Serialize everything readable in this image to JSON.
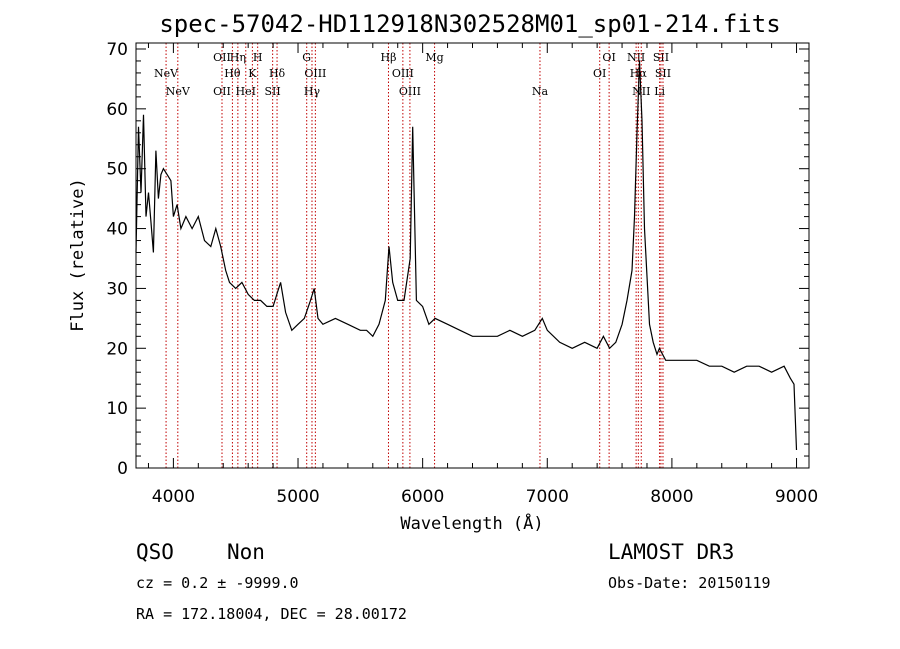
{
  "chart_data": {
    "type": "line",
    "title": "spec-57042-HD112918N302528M01_sp01-214.fits",
    "xlabel": "Wavelength (Å)",
    "ylabel": "Flux (relative)",
    "xlim": [
      3700,
      9100
    ],
    "ylim": [
      0,
      71
    ],
    "xticks": [
      4000,
      5000,
      6000,
      7000,
      8000,
      9000
    ],
    "yticks": [
      0,
      10,
      20,
      30,
      40,
      50,
      60,
      70
    ],
    "grid": false,
    "series": [
      {
        "color": "#000000",
        "x": [
          3700,
          3720,
          3740,
          3760,
          3780,
          3800,
          3820,
          3840,
          3860,
          3880,
          3900,
          3920,
          3950,
          3980,
          4000,
          4030,
          4060,
          4100,
          4150,
          4200,
          4250,
          4300,
          4340,
          4380,
          4420,
          4450,
          4500,
          4550,
          4600,
          4650,
          4700,
          4750,
          4800,
          4830,
          4860,
          4900,
          4950,
          5000,
          5050,
          5100,
          5130,
          5160,
          5200,
          5300,
          5400,
          5500,
          5550,
          5600,
          5650,
          5700,
          5730,
          5760,
          5800,
          5850,
          5900,
          5920,
          5950,
          6000,
          6050,
          6100,
          6200,
          6300,
          6400,
          6500,
          6600,
          6700,
          6800,
          6900,
          6960,
          7000,
          7100,
          7200,
          7300,
          7400,
          7450,
          7500,
          7550,
          7600,
          7640,
          7680,
          7700,
          7720,
          7740,
          7760,
          7780,
          7800,
          7820,
          7850,
          7880,
          7900,
          7950,
          8000,
          8100,
          8200,
          8300,
          8400,
          8500,
          8600,
          8700,
          8800,
          8900,
          8950,
          8980,
          9000
        ],
        "y": [
          36,
          57,
          46,
          59,
          42,
          46,
          41,
          36,
          53,
          45,
          49,
          50,
          49,
          48,
          42,
          44,
          40,
          42,
          40,
          42,
          38,
          37,
          40,
          37,
          33,
          31,
          30,
          31,
          29,
          28,
          28,
          27,
          27,
          29,
          31,
          26,
          23,
          24,
          25,
          28,
          30,
          25,
          24,
          25,
          24,
          23,
          23,
          22,
          24,
          28,
          37,
          31,
          28,
          28,
          35,
          57,
          28,
          27,
          24,
          25,
          24,
          23,
          22,
          22,
          22,
          23,
          22,
          23,
          25,
          23,
          21,
          20,
          21,
          20,
          22,
          20,
          21,
          24,
          28,
          33,
          42,
          56,
          68,
          58,
          40,
          32,
          24,
          21,
          19,
          20,
          18,
          18,
          18,
          18,
          17,
          17,
          16,
          17,
          17,
          16,
          17,
          15,
          14,
          3
        ]
      }
    ],
    "spectral_lines": [
      {
        "name": "NeV",
        "x": 3426,
        "row": 3
      },
      {
        "name": "NeV",
        "x": 3346,
        "row": 2
      },
      {
        "name": "OII",
        "x": 3727,
        "row": 1
      },
      {
        "name": "Hη",
        "x": 3835,
        "row": 1
      },
      {
        "name": "H",
        "x": 3970,
        "row": 1
      },
      {
        "name": "Hθ",
        "x": 3798,
        "row": 2
      },
      {
        "name": "K",
        "x": 3934,
        "row": 2
      },
      {
        "name": "OII",
        "x": 3727,
        "row": 3
      },
      {
        "name": "HeI",
        "x": 3889,
        "row": 3
      },
      {
        "name": "Hδ",
        "x": 4102,
        "row": 2
      },
      {
        "name": "SII",
        "x": 4072,
        "row": 3
      },
      {
        "name": "G",
        "x": 4304,
        "row": 1
      },
      {
        "name": "OIII",
        "x": 4363,
        "row": 2
      },
      {
        "name": "Hγ",
        "x": 4340,
        "row": 3
      },
      {
        "name": "Hβ",
        "x": 4861,
        "row": 1
      },
      {
        "name": "OIII",
        "x": 4959,
        "row": 2
      },
      {
        "name": "OIII",
        "x": 5007,
        "row": 3
      },
      {
        "name": "Mg",
        "x": 5175,
        "row": 1
      },
      {
        "name": "Na",
        "x": 5893,
        "row": 3
      },
      {
        "name": "OI",
        "x": 6364,
        "row": 1
      },
      {
        "name": "OI",
        "x": 6300,
        "row": 2
      },
      {
        "name": "NII",
        "x": 6548,
        "row": 1
      },
      {
        "name": "SII",
        "x": 6717,
        "row": 1
      },
      {
        "name": "Hα",
        "x": 6563,
        "row": 2
      },
      {
        "name": "SII",
        "x": 6731,
        "row": 2
      },
      {
        "name": "NII",
        "x": 6583,
        "row": 3
      },
      {
        "name": "Li",
        "x": 6708,
        "row": 3
      }
    ],
    "redshift_factor": 1.1779
  },
  "info": {
    "class": "QSO",
    "subclass": "Non",
    "survey": "LAMOST DR3",
    "cz": "cz = 0.2 ± -9999.0",
    "obsdate": "Obs-Date: 20150119",
    "coords": "RA = 172.18004, DEC =  28.00172"
  }
}
